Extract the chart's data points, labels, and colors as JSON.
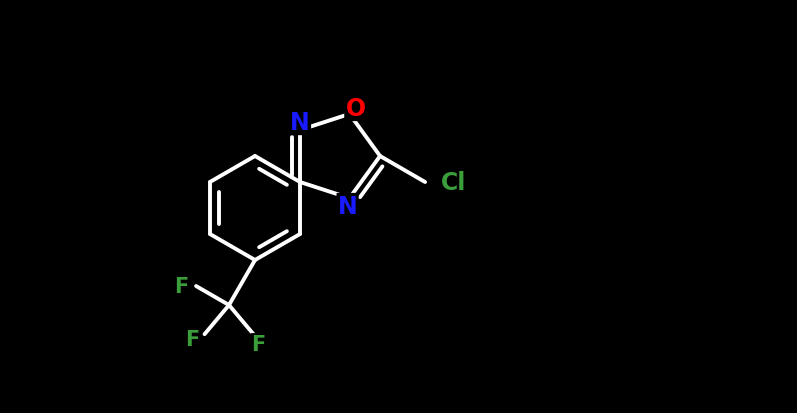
{
  "background_color": "#000000",
  "bond_color": "#ffffff",
  "bond_width": 2.8,
  "N_color": "#1a1aff",
  "O_color": "#ff0000",
  "F_color": "#3a9e3a",
  "Cl_color": "#3a9e3a",
  "figsize": [
    7.97,
    4.14
  ],
  "dpi": 100,
  "xlim": [
    0.0,
    7.97
  ],
  "ylim": [
    0.0,
    4.14
  ],
  "font_size": 17,
  "font_size_small": 15
}
